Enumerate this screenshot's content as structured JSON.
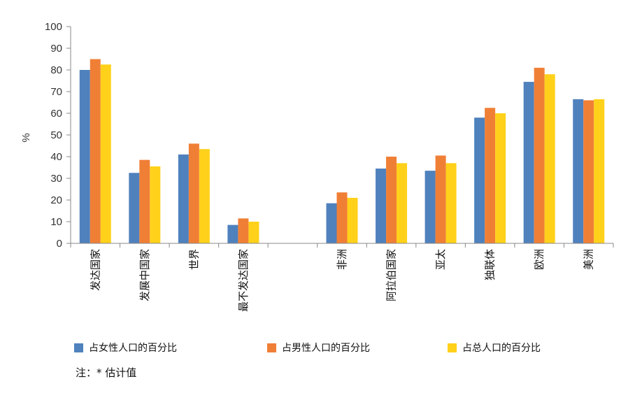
{
  "chart_data": {
    "type": "bar",
    "title": "",
    "xlabel": "",
    "ylabel": "%",
    "ylim": [
      0,
      100
    ],
    "yticks": [
      0,
      10,
      20,
      30,
      40,
      50,
      60,
      70,
      80,
      90,
      100
    ],
    "grid": false,
    "legend_position": "bottom",
    "categories": [
      "发达国家",
      "发展中国家",
      "世界",
      "最不发达国家",
      "",
      "非洲",
      "阿拉伯国家",
      "亚太",
      "独联体",
      "欧洲",
      "美洲"
    ],
    "series": [
      {
        "name": "占女性人口的百分比",
        "color": "#4F81BD",
        "values": [
          80,
          32.5,
          41,
          8.5,
          null,
          18.5,
          34.5,
          33.5,
          58,
          74.5,
          66.5
        ]
      },
      {
        "name": "占男性人口的百分比",
        "color": "#F07F36",
        "values": [
          85,
          38.5,
          46,
          11.5,
          null,
          23.5,
          40,
          40.5,
          62.5,
          81,
          66
        ]
      },
      {
        "name": "占总人口的百分比",
        "color": "#FFD11A",
        "values": [
          82.5,
          35.5,
          43.5,
          10,
          null,
          21,
          37,
          37,
          60,
          78,
          66.5
        ]
      }
    ]
  },
  "note": "注：* 估计值"
}
